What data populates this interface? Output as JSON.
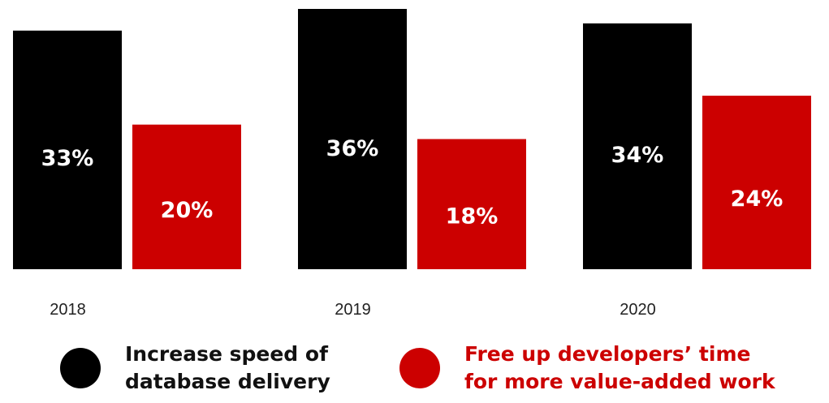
{
  "chart_data": {
    "type": "bar",
    "categories": [
      "2018",
      "2019",
      "2020"
    ],
    "series": [
      {
        "name": "Increase speed of\ndatabase delivery",
        "values": [
          33,
          36,
          34
        ],
        "labels": [
          "33%",
          "36%",
          "34%"
        ],
        "color": "#000000"
      },
      {
        "name": "Free up developers’ time\nfor more value-added work",
        "values": [
          20,
          18,
          24
        ],
        "labels": [
          "20%",
          "18%",
          "24%"
        ],
        "color": "#cc0000"
      }
    ],
    "ylim": [
      0,
      36
    ],
    "grid": false,
    "legend_position": "bottom"
  }
}
